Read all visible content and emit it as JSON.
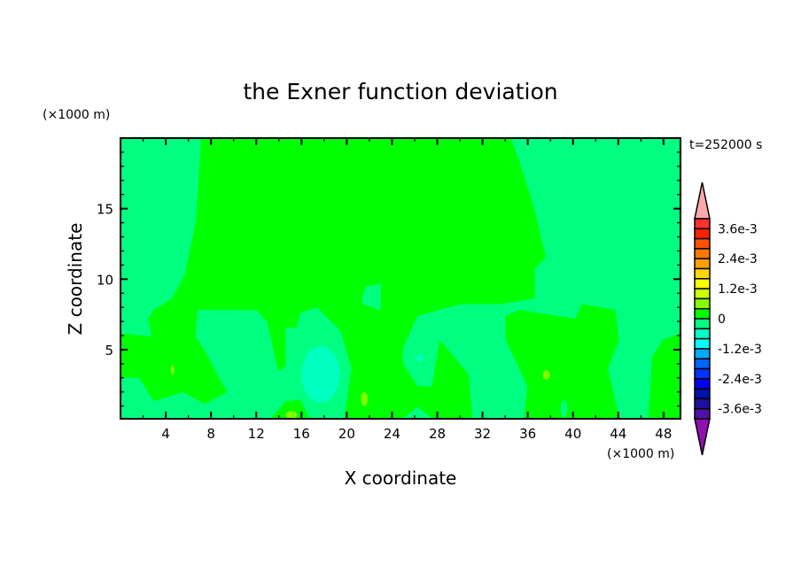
{
  "chart_data": {
    "type": "contour",
    "title": "the Exner function deviation",
    "xlabel": "X coordinate",
    "ylabel": "Z coordinate",
    "x_unit_label": "(×1000 m)",
    "y_unit_label": "(×1000 m)",
    "time_label": "t=252000 s",
    "xlim": [
      0,
      49.5
    ],
    "ylim": [
      0.1,
      20
    ],
    "x_ticks": [
      4,
      8,
      12,
      16,
      20,
      24,
      28,
      32,
      36,
      40,
      44,
      48
    ],
    "y_ticks": [
      5,
      10,
      15
    ],
    "grid": false,
    "background_level_color": "#00ff80",
    "regions": [
      {
        "level": "0 to 4e-4",
        "color": "#00ff00",
        "points": [
          [
            7.14,
            20
          ],
          [
            6.65,
            14.06
          ],
          [
            5.68,
            10.31
          ],
          [
            4.55,
            8.64
          ],
          [
            2.93,
            7.81
          ],
          [
            2.44,
            7.19
          ],
          [
            2.77,
            5.94
          ],
          [
            0,
            6.15
          ],
          [
            0,
            3.02
          ],
          [
            1.63,
            3.02
          ],
          [
            2.93,
            1.35
          ],
          [
            5.52,
            1.98
          ],
          [
            7.46,
            1.15
          ],
          [
            9.41,
            1.98
          ],
          [
            7.46,
            4.9
          ],
          [
            6.65,
            5.94
          ],
          [
            6.82,
            7.81
          ],
          [
            12.0,
            7.81
          ],
          [
            12.97,
            6.98
          ],
          [
            13.94,
            3.44
          ],
          [
            14.59,
            3.85
          ],
          [
            14.59,
            6.56
          ],
          [
            15.56,
            6.56
          ],
          [
            15.89,
            7.6
          ],
          [
            17.34,
            8.02
          ],
          [
            19.45,
            6.35
          ],
          [
            20.42,
            3.65
          ],
          [
            19.77,
            0.1
          ],
          [
            24.96,
            0.1
          ],
          [
            26.25,
            0.94
          ],
          [
            27.55,
            0.1
          ],
          [
            31.11,
            0.1
          ],
          [
            30.79,
            3.23
          ],
          [
            28.2,
            5.73
          ],
          [
            27.55,
            2.4
          ],
          [
            26.25,
            2.4
          ],
          [
            24.96,
            4.06
          ],
          [
            24.96,
            5.1
          ],
          [
            26.25,
            7.4
          ],
          [
            30.14,
            8.23
          ],
          [
            33.7,
            8.23
          ],
          [
            36.62,
            8.64
          ],
          [
            36.62,
            10.73
          ],
          [
            37.59,
            11.56
          ],
          [
            36.62,
            14.9
          ],
          [
            35.32,
            18.23
          ],
          [
            34.51,
            20
          ]
        ]
      },
      {
        "level": "-4e-4 to 0",
        "color": "#00ff80",
        "points": [
          [
            21.7,
            9.48
          ],
          [
            23.01,
            9.69
          ],
          [
            23.01,
            7.81
          ],
          [
            21.39,
            8.23
          ],
          [
            21.39,
            8.85
          ]
        ]
      },
      {
        "level": "0 to 4e-4",
        "color": "#00ff00",
        "points": [
          [
            13.3,
            0.1
          ],
          [
            14.59,
            1.35
          ],
          [
            15.89,
            1.46
          ],
          [
            16.7,
            0.1
          ]
        ]
      },
      {
        "level": "0 to 4e-4",
        "color": "#00ff00",
        "points": [
          [
            34.03,
            7.4
          ],
          [
            35.32,
            7.81
          ],
          [
            40.18,
            7.19
          ],
          [
            40.83,
            8.23
          ],
          [
            43.74,
            7.81
          ],
          [
            44.07,
            5.73
          ],
          [
            43.1,
            3.65
          ],
          [
            44.07,
            0.1
          ],
          [
            35.65,
            0.1
          ],
          [
            35.97,
            2.4
          ],
          [
            34.03,
            5.73
          ]
        ]
      },
      {
        "level": "0 to 4e-4",
        "color": "#00ff00",
        "points": [
          [
            49.5,
            6.15
          ],
          [
            47.96,
            5.73
          ],
          [
            46.99,
            4.48
          ],
          [
            46.66,
            0.1
          ],
          [
            49.5,
            0.1
          ]
        ]
      }
    ],
    "ellipses": [
      {
        "level": "-8e-4 to -4e-4",
        "color": "#00ffc0",
        "cx": 17.7,
        "cz": 3.25,
        "rx": 1.7,
        "rz": 2.0
      },
      {
        "level": "-8e-4 to -4e-4",
        "color": "#00ffc0",
        "cx": 26.5,
        "cz": 4.4,
        "rx": 0.3,
        "rz": 0.25
      },
      {
        "level": "-4e-4 to 0",
        "color": "#00ff80",
        "cx": 39.2,
        "cz": 0.8,
        "rx": 0.3,
        "rz": 0.6
      },
      {
        "level": "4e-4 to 8e-4",
        "color": "#80ff00",
        "cx": 4.6,
        "cz": 3.6,
        "rx": 0.15,
        "rz": 0.35
      },
      {
        "level": "4e-4 to 8e-4",
        "color": "#80ff00",
        "cx": 21.55,
        "cz": 1.5,
        "rx": 0.3,
        "rz": 0.5
      },
      {
        "level": "4e-4 to 8e-4",
        "color": "#80ff00",
        "cx": 37.65,
        "cz": 3.2,
        "rx": 0.3,
        "rz": 0.35
      },
      {
        "level": "4e-4 to 8e-4",
        "color": "#80ff00",
        "cx": 15.1,
        "cz": 0.35,
        "rx": 0.5,
        "rz": 0.3
      }
    ],
    "colorbar": {
      "range": [
        -0.004,
        0.004
      ],
      "step": 0.0004,
      "labels": [
        "3.6e-3",
        "2.4e-3",
        "1.2e-3",
        "0",
        "-1.2e-3",
        "-2.4e-3",
        "-3.6e-3"
      ],
      "label_values": [
        0.0036,
        0.0024,
        0.0012,
        0,
        -0.0012,
        -0.0024,
        -0.0036
      ],
      "colors_top_to_bottom": [
        "#ff3030",
        "#ff2000",
        "#ff5000",
        "#ff7800",
        "#ffa000",
        "#ffd800",
        "#ffff00",
        "#ccff00",
        "#88ff00",
        "#00ff00",
        "#00ff80",
        "#00ffc8",
        "#00ffff",
        "#00a8ff",
        "#0064ff",
        "#0032ff",
        "#0000ff",
        "#0010a8",
        "#2010a0",
        "#5010a8"
      ],
      "over_color": "#ffaaaa",
      "under_color": "#9010b0"
    }
  }
}
